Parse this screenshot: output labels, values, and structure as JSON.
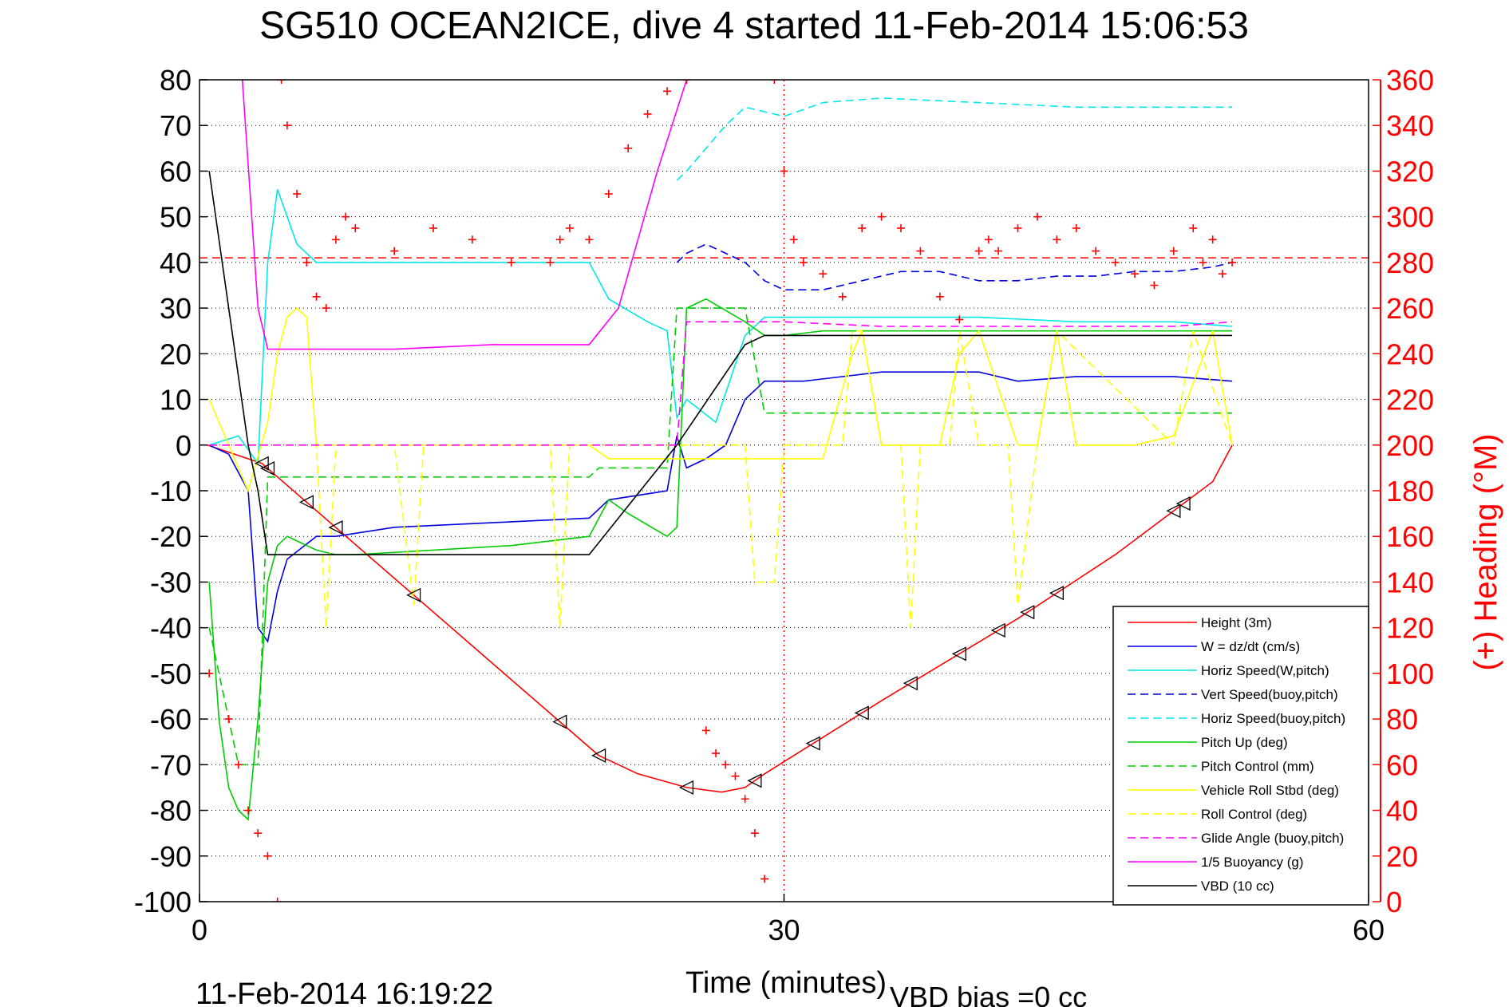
{
  "chart_data": {
    "type": "line",
    "title": "SG510 OCEAN2ICE, dive 4 started 11-Feb-2014 15:06:53",
    "xlabel": "Time (minutes)",
    "ylabel": "",
    "ylabel_right": "(+) Heading (°M)",
    "xlim": [
      0,
      60
    ],
    "ylim": [
      -100,
      80
    ],
    "ylim_right": [
      0,
      360
    ],
    "xticks": [
      "0",
      "30",
      "60"
    ],
    "yticks": [
      "80",
      "70",
      "60",
      "50",
      "40",
      "30",
      "20",
      "10",
      "0",
      "-10",
      "-20",
      "-30",
      "-40",
      "-50",
      "-60",
      "-70",
      "-80",
      "-90",
      "-100"
    ],
    "yticks_right": [
      "360",
      "340",
      "320",
      "300",
      "280",
      "260",
      "240",
      "220",
      "200",
      "180",
      "160",
      "140",
      "120",
      "100",
      "80",
      "60",
      "40",
      "20",
      "0"
    ],
    "grid": true,
    "legend_position": "bottom-right",
    "colors": {
      "red": "#ff0000",
      "blue": "#0000e0",
      "cyan": "#00e8e8",
      "green": "#00cc00",
      "yellow": "#ffff00",
      "magenta": "#ff00ff",
      "black": "#000000"
    },
    "series": [
      {
        "name": "Height (3m)",
        "color": "#ff0000",
        "style": "solid",
        "x": [
          0.4,
          3.2,
          20.5,
          22.5,
          25.0,
          26.8,
          28.0,
          29.0,
          35.0,
          42.0,
          47.0,
          52.0,
          53.0
        ],
        "y": [
          0,
          -4,
          -68,
          -72,
          -75,
          -76,
          -75,
          -72,
          -56,
          -38,
          -24,
          -8,
          0
        ]
      },
      {
        "name": "W = dz/dt (cm/s)",
        "color": "#0000e0",
        "style": "solid",
        "x": [
          0.5,
          1.5,
          2.5,
          3.0,
          3.5,
          4.0,
          4.5,
          6.0,
          7.0,
          10.0,
          15.0,
          20.0,
          21.0,
          24.0,
          24.5,
          25.0,
          26.0,
          27.0,
          28.0,
          29.0,
          31.0,
          35.0,
          40.0,
          42.0,
          45.0,
          50.0,
          53.0
        ],
        "y": [
          0,
          -2,
          -10,
          -40,
          -43,
          -32,
          -25,
          -20,
          -20,
          -18,
          -17,
          -16,
          -12,
          -10,
          2,
          -5,
          -3,
          0,
          10,
          14,
          14,
          16,
          16,
          14,
          15,
          15,
          14
        ]
      },
      {
        "name": "Horiz Speed(W,pitch)",
        "color": "#00e8e8",
        "style": "solid",
        "x": [
          0.5,
          2.0,
          3.0,
          3.5,
          4.0,
          4.5,
          5.0,
          6.0,
          8.0,
          12.0,
          16.0,
          20.0,
          21.0,
          23.0,
          24.0,
          24.5,
          25.0,
          26.5,
          28.0,
          29.0,
          31.0,
          35.0,
          40.0,
          45.0,
          50.0,
          53.0
        ],
        "y": [
          0,
          2,
          -4,
          40,
          56,
          50,
          44,
          40,
          40,
          40,
          40,
          40,
          32,
          27,
          25,
          6,
          10,
          5,
          24,
          28,
          28,
          28,
          28,
          27,
          27,
          26
        ]
      },
      {
        "name": "Vert Speed(buoy,pitch)",
        "color": "#0000e0",
        "style": "dashed",
        "x": [
          24.5,
          25.0,
          26.0,
          27.0,
          28.0,
          29.0,
          30.0,
          32.0,
          34.0,
          36.0,
          38.0,
          40.0,
          42.0,
          44.0,
          46.0,
          48.0,
          50.0,
          52.0,
          53.0
        ],
        "y": [
          40,
          42,
          44,
          42,
          40,
          36,
          34,
          34,
          36,
          38,
          38,
          36,
          36,
          37,
          37,
          38,
          38,
          39,
          40
        ]
      },
      {
        "name": "Horiz Speed(buoy,pitch)",
        "color": "#00e8e8",
        "style": "dashed",
        "x": [
          24.5,
          25.0,
          26.0,
          27.0,
          28.0,
          29.0,
          30.0,
          32.0,
          35.0,
          40.0,
          45.0,
          50.0,
          53.0
        ],
        "y": [
          58,
          60,
          65,
          70,
          74,
          73,
          72,
          75,
          76,
          75,
          74,
          74,
          74
        ]
      },
      {
        "name": "Pitch Up (deg)",
        "color": "#00cc00",
        "style": "solid",
        "x": [
          0.5,
          1.0,
          1.5,
          2.0,
          2.5,
          3.0,
          3.5,
          4.0,
          4.5,
          5.0,
          6.0,
          7.0,
          8.0,
          12.0,
          16.0,
          20.0,
          21.0,
          22.0,
          24.0,
          24.5,
          25.0,
          26.0,
          28.0,
          29.0,
          30.0,
          32.0,
          35.0,
          40.0,
          45.0,
          50.0,
          53.0
        ],
        "y": [
          -30,
          -60,
          -75,
          -80,
          -82,
          -60,
          -30,
          -22,
          -20,
          -21,
          -23,
          -24,
          -24,
          -23,
          -22,
          -20,
          -12,
          -15,
          -20,
          -18,
          30,
          32,
          27,
          24,
          24,
          25,
          25,
          25,
          25,
          25,
          25
        ]
      },
      {
        "name": "Pitch Control (mm)",
        "color": "#00cc00",
        "style": "dashed",
        "x": [
          0.5,
          2.0,
          3.0,
          3.5,
          5.0,
          10.0,
          15.0,
          20.0,
          20.5,
          24.0,
          24.5,
          25.0,
          26.0,
          28.0,
          29.0,
          30.0,
          35.0,
          40.0,
          45.0,
          50.0,
          53.0
        ],
        "y": [
          -40,
          -70,
          -70,
          -7,
          -7,
          -7,
          -7,
          -7,
          -5,
          -5,
          30,
          30,
          30,
          30,
          7,
          7,
          7,
          7,
          7,
          7,
          7
        ]
      },
      {
        "name": "Vehicle Roll Stbd (deg)",
        "color": "#ffff00",
        "style": "solid",
        "x": [
          0.5,
          1.5,
          2.5,
          3.5,
          4.0,
          4.5,
          5.0,
          5.5,
          6.0,
          7.0,
          8.0,
          10.0,
          12.0,
          15.0,
          18.0,
          20.0,
          21.0,
          24.0,
          25.0,
          28.0,
          30.0,
          32.0,
          33.5,
          34.0,
          35.0,
          37.0,
          38.0,
          39.0,
          40.0,
          42.0,
          43.0,
          44.0,
          45.0,
          46.0,
          48.0,
          50.0,
          52.0,
          53.0
        ],
        "y": [
          10,
          0,
          -10,
          5,
          20,
          28,
          30,
          28,
          0,
          0,
          0,
          0,
          0,
          0,
          0,
          0,
          -3,
          -3,
          -3,
          -3,
          -3,
          -3,
          20,
          25,
          0,
          0,
          0,
          20,
          25,
          0,
          0,
          25,
          0,
          0,
          0,
          2,
          25,
          0
        ]
      },
      {
        "name": "Roll Control (deg)",
        "color": "#ffff00",
        "style": "dashed",
        "x": [
          0.5,
          2.0,
          3.0,
          3.5,
          5.0,
          6.0,
          6.5,
          7.0,
          10.0,
          11.0,
          11.5,
          12.0,
          18.0,
          18.5,
          19.0,
          24.0,
          25.0,
          28.0,
          28.5,
          29.5,
          30.0,
          33.0,
          33.5,
          34.0,
          35.0,
          36.0,
          36.5,
          37.0,
          38.5,
          39.0,
          40.0,
          41.5,
          42.0,
          43.0,
          44.0,
          50.0,
          51.0,
          53.0
        ],
        "y": [
          0,
          0,
          0,
          0,
          0,
          0,
          -40,
          0,
          0,
          -35,
          0,
          0,
          0,
          -40,
          0,
          0,
          0,
          0,
          -30,
          -30,
          0,
          0,
          25,
          25,
          0,
          0,
          -40,
          0,
          0,
          25,
          0,
          0,
          -35,
          0,
          25,
          0,
          25,
          0
        ]
      },
      {
        "name": "Glide Angle (buoy,pitch)",
        "color": "#ff00ff",
        "style": "dashed",
        "x": [
          0.5,
          24.5,
          25.0,
          30.0,
          35.0,
          40.0,
          45.0,
          50.0,
          53.0
        ],
        "y": [
          0,
          0,
          27,
          27,
          26,
          26,
          26,
          26,
          27
        ]
      },
      {
        "name": "1/5 Buoyancy (g)",
        "color": "#ff00ff",
        "style": "solid",
        "x": [
          2.2,
          3.0,
          3.5,
          10.0,
          15.0,
          20.0,
          21.5,
          23.5,
          25.0
        ],
        "y": [
          80,
          30,
          21,
          21,
          22,
          22,
          30,
          60,
          80
        ]
      },
      {
        "name": "VBD (10 cc)",
        "color": "#000000",
        "style": "solid",
        "x": [
          0.5,
          2.5,
          3.0,
          3.5,
          10.0,
          20.0,
          24.5,
          28.0,
          29.0,
          35.0,
          40.0,
          45.0,
          50.0,
          53.0
        ],
        "y": [
          60,
          0,
          -10,
          -24,
          -24,
          -24,
          0,
          22,
          24,
          24,
          24,
          24,
          24,
          24
        ]
      },
      {
        "name": "",
        "color": "#ff0000",
        "style": "markers",
        "axis": "right",
        "x": [
          0.5,
          1.5,
          2.0,
          2.5,
          3.0,
          3.5,
          4.0,
          4.2,
          4.5,
          5.0,
          5.5,
          6.0,
          6.5,
          7.0,
          7.5,
          8.0,
          10.0,
          12.0,
          14.0,
          16.0,
          18.0,
          18.5,
          19.0,
          20.0,
          21.0,
          22.0,
          23.0,
          24.0,
          25.0,
          26.0,
          26.5,
          27.0,
          27.5,
          28.0,
          28.5,
          29.0,
          29.5,
          30.0,
          30.5,
          31.0,
          32.0,
          33.0,
          34.0,
          35.0,
          36.0,
          37.0,
          38.0,
          39.0,
          40.0,
          40.5,
          41.0,
          42.0,
          43.0,
          44.0,
          45.0,
          46.0,
          47.0,
          48.0,
          49.0,
          50.0,
          51.0,
          51.5,
          52.0,
          52.5,
          53.0
        ],
        "y": [
          100,
          80,
          60,
          40,
          30,
          20,
          0,
          360,
          340,
          310,
          280,
          265,
          260,
          290,
          300,
          295,
          285,
          295,
          290,
          280,
          280,
          290,
          295,
          290,
          310,
          330,
          345,
          355,
          360,
          75,
          65,
          60,
          55,
          45,
          30,
          10,
          360,
          320,
          290,
          280,
          275,
          265,
          295,
          300,
          295,
          285,
          265,
          255,
          285,
          290,
          285,
          295,
          300,
          290,
          295,
          285,
          280,
          275,
          270,
          285,
          295,
          280,
          290,
          275,
          280
        ]
      }
    ],
    "reference_lines": [
      {
        "axis": "right",
        "value": 282,
        "color": "#ff0000",
        "style": "dashed"
      },
      {
        "axis": "x",
        "value": 30,
        "color": "#ff0000",
        "style": "dotted"
      }
    ],
    "depth_markers_x": [
      3.2,
      3.5,
      5.5,
      7.0,
      11.0,
      18.5,
      20.5,
      25.0,
      28.5,
      31.5,
      34.0,
      36.5,
      39.0,
      41.0,
      42.5,
      44.0,
      50.0,
      50.5
    ]
  },
  "footer": {
    "timestamp": "11-Feb-2014 16:19:22",
    "vbd_bias": "VBD bias =0 cc"
  }
}
